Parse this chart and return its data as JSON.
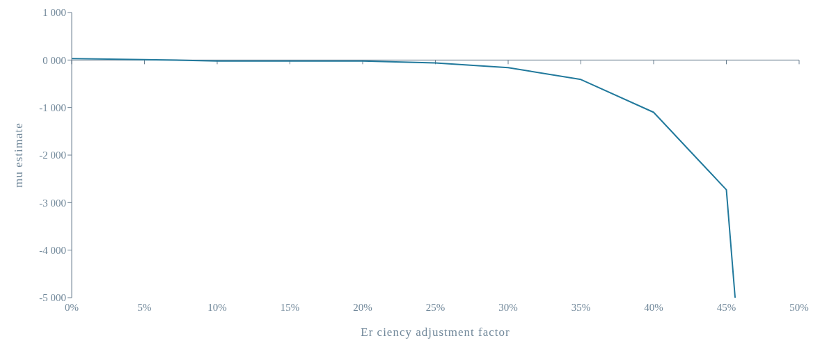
{
  "chart_data": {
    "type": "line",
    "xlabel": "Er ciency adjustment factor",
    "ylabel": "mu estimate",
    "x": [
      0,
      5,
      10,
      15,
      20,
      25,
      30,
      35,
      40,
      45,
      45.6
    ],
    "series": [
      {
        "color": "#21799c",
        "values": [
          30,
          10,
          -20,
          -20,
          -20,
          -60,
          -160,
          -410,
          -1100,
          -2730,
          -5000
        ]
      }
    ],
    "xlim": [
      0,
      50
    ],
    "xticks": [
      {
        "value": 0,
        "label": "0%"
      },
      {
        "value": 5,
        "label": "5%"
      },
      {
        "value": 10,
        "label": "10%"
      },
      {
        "value": 15,
        "label": "15%"
      },
      {
        "value": 20,
        "label": "20%"
      },
      {
        "value": 25,
        "label": "25%"
      },
      {
        "value": 30,
        "label": "30%"
      },
      {
        "value": 35,
        "label": "35%"
      },
      {
        "value": 40,
        "label": "40%"
      },
      {
        "value": 45,
        "label": "45%"
      },
      {
        "value": 50,
        "label": "50%"
      }
    ],
    "ylim": [
      -5000,
      1000
    ],
    "yticks": [
      {
        "value": -5000,
        "label": "-5 000"
      },
      {
        "value": -4000,
        "label": "-4 000"
      },
      {
        "value": -3000,
        "label": "-3 000"
      },
      {
        "value": -2000,
        "label": "-2 000"
      },
      {
        "value": -1000,
        "label": "-1 000"
      },
      {
        "value": 0,
        "label": "0 000"
      },
      {
        "value": 1000,
        "label": "1 000"
      }
    ],
    "ref_lines": [
      {
        "axis": "y",
        "value": 0,
        "color": "#6a7f90"
      }
    ],
    "grid": false,
    "legend": false,
    "marker": "none",
    "line_style": "solid"
  }
}
